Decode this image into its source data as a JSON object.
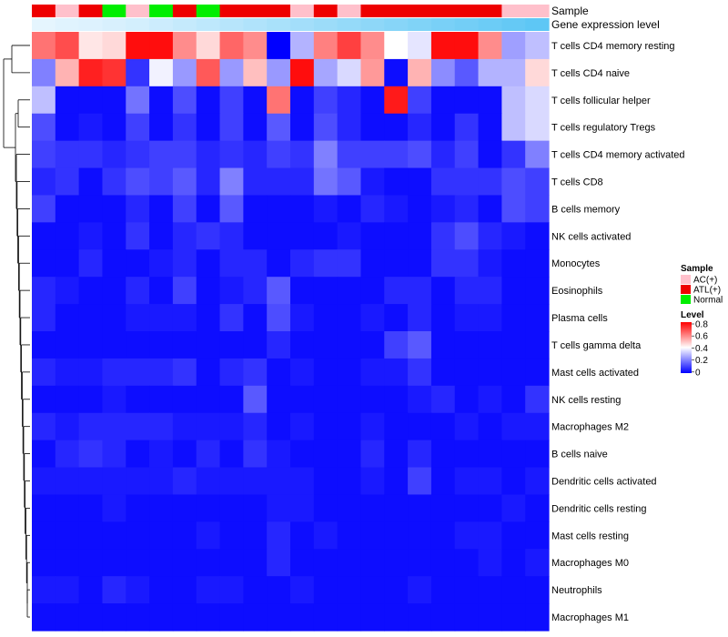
{
  "chart_data": {
    "type": "heatmap",
    "title": "",
    "annotation_labels": {
      "sample": "Sample",
      "expression": "Gene expression level"
    },
    "sample_groups": [
      "ATL(+)",
      "AC(+)",
      "ATL(+)",
      "Normal",
      "AC(+)",
      "Normal",
      "ATL(+)",
      "Normal",
      "ATL(+)",
      "ATL(+)",
      "ATL(+)",
      "AC(+)",
      "ATL(+)",
      "AC(+)",
      "ATL(+)",
      "ATL(+)",
      "ATL(+)",
      "ATL(+)",
      "ATL(+)",
      "ATL(+)",
      "AC(+)",
      "AC(+)"
    ],
    "gene_expression": [
      0.05,
      0.08,
      0.1,
      0.13,
      0.16,
      0.2,
      0.24,
      0.28,
      0.32,
      0.36,
      0.4,
      0.44,
      0.48,
      0.52,
      0.56,
      0.6,
      0.64,
      0.68,
      0.72,
      0.76,
      0.8,
      0.84
    ],
    "rows": [
      "T cells CD4 memory resting",
      "T cells CD4 naive",
      "T cells follicular helper",
      "T cells regulatory  Tregs",
      "T cells CD4 memory activated",
      "T cells CD8",
      "B cells memory",
      "NK cells activated",
      "Monocytes",
      "Eosinophils",
      "Plasma cells",
      "T cells gamma delta",
      "Mast cells activated",
      "NK cells resting",
      "Macrophages M2",
      "B cells naive",
      "Dendritic cells activated",
      "Dendritic cells resting",
      "Mast cells resting",
      "Macrophages M0",
      "Neutrophils",
      "Macrophages M1"
    ],
    "values": [
      [
        0.62,
        0.68,
        0.44,
        0.46,
        0.78,
        0.78,
        0.58,
        0.46,
        0.64,
        0.58,
        0.0,
        0.28,
        0.6,
        0.7,
        0.58,
        0.4,
        0.36,
        0.78,
        0.78,
        0.58,
        0.25,
        0.3
      ],
      [
        0.2,
        0.52,
        0.75,
        0.72,
        0.08,
        0.38,
        0.24,
        0.66,
        0.24,
        0.5,
        0.24,
        0.78,
        0.26,
        0.34,
        0.56,
        0.02,
        0.52,
        0.22,
        0.14,
        0.28,
        0.28,
        0.46
      ],
      [
        0.3,
        0.02,
        0.02,
        0.02,
        0.18,
        0.02,
        0.12,
        0.02,
        0.1,
        0.02,
        0.62,
        0.02,
        0.1,
        0.06,
        0.02,
        0.76,
        0.1,
        0.02,
        0.02,
        0.02,
        0.3,
        0.34
      ],
      [
        0.12,
        0.02,
        0.04,
        0.02,
        0.1,
        0.02,
        0.08,
        0.02,
        0.1,
        0.02,
        0.14,
        0.02,
        0.12,
        0.06,
        0.02,
        0.02,
        0.06,
        0.02,
        0.08,
        0.02,
        0.3,
        0.34
      ],
      [
        0.1,
        0.08,
        0.08,
        0.06,
        0.08,
        0.1,
        0.1,
        0.06,
        0.08,
        0.06,
        0.1,
        0.08,
        0.2,
        0.1,
        0.1,
        0.1,
        0.12,
        0.06,
        0.1,
        0.02,
        0.08,
        0.2
      ],
      [
        0.06,
        0.08,
        0.02,
        0.08,
        0.12,
        0.1,
        0.14,
        0.06,
        0.2,
        0.06,
        0.06,
        0.06,
        0.18,
        0.14,
        0.04,
        0.02,
        0.02,
        0.08,
        0.08,
        0.08,
        0.12,
        0.1
      ],
      [
        0.1,
        0.02,
        0.02,
        0.02,
        0.06,
        0.02,
        0.1,
        0.02,
        0.14,
        0.02,
        0.02,
        0.02,
        0.04,
        0.02,
        0.06,
        0.04,
        0.02,
        0.04,
        0.06,
        0.02,
        0.12,
        0.1
      ],
      [
        0.02,
        0.02,
        0.04,
        0.02,
        0.08,
        0.02,
        0.06,
        0.08,
        0.06,
        0.02,
        0.02,
        0.02,
        0.02,
        0.04,
        0.02,
        0.02,
        0.02,
        0.08,
        0.12,
        0.06,
        0.04,
        0.02
      ],
      [
        0.02,
        0.02,
        0.06,
        0.02,
        0.02,
        0.04,
        0.06,
        0.02,
        0.06,
        0.06,
        0.02,
        0.06,
        0.08,
        0.08,
        0.02,
        0.02,
        0.02,
        0.08,
        0.08,
        0.04,
        0.02,
        0.02
      ],
      [
        0.06,
        0.04,
        0.02,
        0.02,
        0.06,
        0.02,
        0.1,
        0.02,
        0.04,
        0.06,
        0.14,
        0.02,
        0.02,
        0.02,
        0.02,
        0.06,
        0.06,
        0.02,
        0.06,
        0.06,
        0.02,
        0.02
      ],
      [
        0.06,
        0.02,
        0.02,
        0.02,
        0.04,
        0.04,
        0.04,
        0.02,
        0.08,
        0.02,
        0.12,
        0.04,
        0.02,
        0.02,
        0.04,
        0.02,
        0.06,
        0.02,
        0.04,
        0.04,
        0.02,
        0.02
      ],
      [
        0.02,
        0.02,
        0.02,
        0.02,
        0.02,
        0.02,
        0.02,
        0.02,
        0.02,
        0.02,
        0.06,
        0.02,
        0.02,
        0.02,
        0.02,
        0.1,
        0.14,
        0.02,
        0.02,
        0.02,
        0.02,
        0.02
      ],
      [
        0.06,
        0.04,
        0.04,
        0.06,
        0.06,
        0.06,
        0.08,
        0.02,
        0.06,
        0.08,
        0.02,
        0.04,
        0.02,
        0.02,
        0.04,
        0.04,
        0.08,
        0.02,
        0.02,
        0.02,
        0.02,
        0.02
      ],
      [
        0.02,
        0.02,
        0.02,
        0.04,
        0.02,
        0.02,
        0.02,
        0.02,
        0.02,
        0.14,
        0.02,
        0.02,
        0.02,
        0.02,
        0.02,
        0.02,
        0.04,
        0.06,
        0.02,
        0.04,
        0.02,
        0.08
      ],
      [
        0.06,
        0.04,
        0.06,
        0.06,
        0.06,
        0.06,
        0.04,
        0.04,
        0.04,
        0.06,
        0.02,
        0.04,
        0.02,
        0.02,
        0.04,
        0.02,
        0.02,
        0.02,
        0.04,
        0.02,
        0.04,
        0.04
      ],
      [
        0.02,
        0.06,
        0.08,
        0.06,
        0.02,
        0.04,
        0.02,
        0.06,
        0.02,
        0.08,
        0.04,
        0.02,
        0.02,
        0.02,
        0.06,
        0.02,
        0.06,
        0.02,
        0.02,
        0.02,
        0.02,
        0.02
      ],
      [
        0.04,
        0.04,
        0.04,
        0.04,
        0.04,
        0.04,
        0.06,
        0.04,
        0.04,
        0.04,
        0.04,
        0.04,
        0.02,
        0.02,
        0.04,
        0.02,
        0.1,
        0.02,
        0.04,
        0.04,
        0.02,
        0.04
      ],
      [
        0.02,
        0.02,
        0.02,
        0.04,
        0.02,
        0.02,
        0.02,
        0.02,
        0.02,
        0.02,
        0.04,
        0.04,
        0.02,
        0.02,
        0.02,
        0.02,
        0.02,
        0.02,
        0.02,
        0.02,
        0.04,
        0.02
      ],
      [
        0.02,
        0.02,
        0.02,
        0.02,
        0.02,
        0.02,
        0.02,
        0.04,
        0.02,
        0.02,
        0.06,
        0.02,
        0.04,
        0.02,
        0.02,
        0.02,
        0.02,
        0.02,
        0.04,
        0.04,
        0.02,
        0.02
      ],
      [
        0.02,
        0.02,
        0.02,
        0.02,
        0.02,
        0.02,
        0.02,
        0.02,
        0.02,
        0.02,
        0.06,
        0.02,
        0.02,
        0.02,
        0.02,
        0.02,
        0.02,
        0.02,
        0.02,
        0.04,
        0.02,
        0.04
      ],
      [
        0.04,
        0.04,
        0.02,
        0.06,
        0.04,
        0.02,
        0.02,
        0.04,
        0.04,
        0.02,
        0.02,
        0.04,
        0.02,
        0.02,
        0.02,
        0.02,
        0.04,
        0.02,
        0.02,
        0.02,
        0.02,
        0.02
      ],
      [
        0.02,
        0.02,
        0.02,
        0.02,
        0.02,
        0.02,
        0.02,
        0.02,
        0.02,
        0.02,
        0.02,
        0.02,
        0.02,
        0.02,
        0.02,
        0.02,
        0.02,
        0.02,
        0.02,
        0.02,
        0.02,
        0.02
      ]
    ],
    "legend": {
      "sample_title": "Sample",
      "sample_items": [
        {
          "label": "AC(+)",
          "color": "#ffc0cb"
        },
        {
          "label": "ATL(+)",
          "color": "#ee0000"
        },
        {
          "label": "Normal",
          "color": "#00ee00"
        }
      ],
      "level_title": "Level",
      "level_ticks": [
        "0.8",
        "0.6",
        "0.4",
        "0.2",
        "0"
      ],
      "level_range": [
        0,
        0.8
      ]
    },
    "colors": {
      "low": "#0000ff",
      "mid": "#ffffff",
      "high": "#ff0000",
      "expr_low": "#eef8ff",
      "expr_high": "#5ec7f5"
    }
  }
}
